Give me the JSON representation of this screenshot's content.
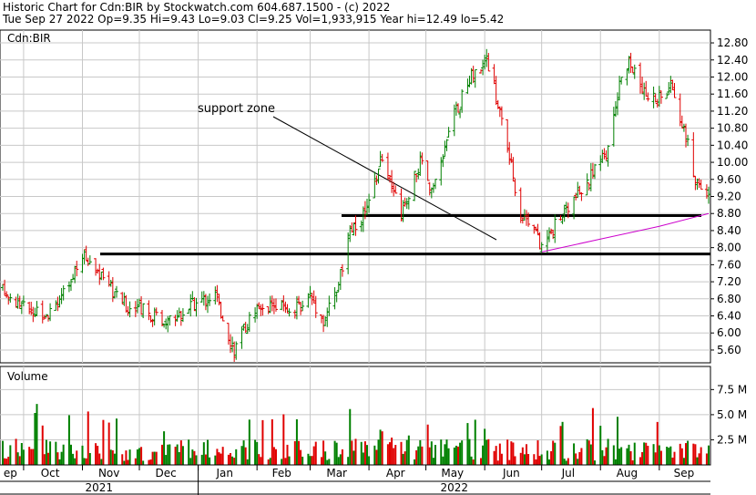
{
  "header": {
    "line1": "Historic Chart for Cdn:BIR by Stockwatch.com 604.687.1500 - (c) 2022",
    "line2": "Tue Sep 27 2022  Op=9.35  Hi=9.43  Lo=9.03  Cl=9.25  Vol=1,933,915  Year hi=12.49  lo=5.42"
  },
  "price_panel": {
    "symbol_label": "Cdn:BIR",
    "annotation": "support zone",
    "y_ticks": [
      "12.80",
      "12.40",
      "12.00",
      "11.60",
      "11.20",
      "10.80",
      "10.40",
      "10.00",
      "9.60",
      "9.20",
      "8.80",
      "8.40",
      "8.00",
      "7.60",
      "7.20",
      "6.80",
      "6.40",
      "6.00",
      "5.60"
    ]
  },
  "volume_panel": {
    "title": "Volume",
    "y_ticks": [
      "7.5 M",
      "5.0 M",
      "2.5 M"
    ]
  },
  "x_axis": {
    "months": [
      "ep",
      "Oct",
      "Nov",
      "Dec",
      "Jan",
      "Feb",
      "Mar",
      "Apr",
      "May",
      "Jun",
      "Jul",
      "Aug",
      "Sep"
    ],
    "years": [
      "2021",
      "2022"
    ]
  },
  "colors": {
    "up": "#008000",
    "down": "#e00000",
    "ma": "#cc00cc",
    "grid": "#c8c8c8",
    "support": "#000000"
  },
  "chart_data": {
    "type": "ohlc_bar_with_volume",
    "price_range": [
      5.3,
      13.1
    ],
    "volume_range_millions": [
      0,
      9.8
    ],
    "grid": true,
    "support_levels": [
      7.85,
      8.75
    ],
    "price_path": [
      {
        "date": "2021-09-20",
        "close": 7.0
      },
      {
        "date": "2021-10-01",
        "close": 6.6
      },
      {
        "date": "2021-10-15",
        "close": 6.5
      },
      {
        "date": "2021-10-25",
        "close": 7.1
      },
      {
        "date": "2021-11-01",
        "close": 7.8
      },
      {
        "date": "2021-11-05",
        "close": 7.7
      },
      {
        "date": "2021-11-15",
        "close": 7.1
      },
      {
        "date": "2021-11-25",
        "close": 6.6
      },
      {
        "date": "2021-12-05",
        "close": 6.5
      },
      {
        "date": "2021-12-15",
        "close": 6.3
      },
      {
        "date": "2021-12-31",
        "close": 6.7
      },
      {
        "date": "2022-01-10",
        "close": 6.9
      },
      {
        "date": "2022-01-20",
        "close": 5.6
      },
      {
        "date": "2022-01-31",
        "close": 6.6
      },
      {
        "date": "2022-02-10",
        "close": 6.7
      },
      {
        "date": "2022-02-20",
        "close": 6.5
      },
      {
        "date": "2022-03-01",
        "close": 6.9
      },
      {
        "date": "2022-03-08",
        "close": 6.3
      },
      {
        "date": "2022-03-15",
        "close": 7.0
      },
      {
        "date": "2022-03-22",
        "close": 8.3
      },
      {
        "date": "2022-03-31",
        "close": 8.9
      },
      {
        "date": "2022-04-08",
        "close": 10.2
      },
      {
        "date": "2022-04-12",
        "close": 9.6
      },
      {
        "date": "2022-04-18",
        "close": 8.8
      },
      {
        "date": "2022-04-28",
        "close": 10.0
      },
      {
        "date": "2022-05-05",
        "close": 9.3
      },
      {
        "date": "2022-05-15",
        "close": 11.0
      },
      {
        "date": "2022-05-25",
        "close": 12.0
      },
      {
        "date": "2022-06-02",
        "close": 12.45
      },
      {
        "date": "2022-06-10",
        "close": 11.0
      },
      {
        "date": "2022-06-20",
        "close": 8.8
      },
      {
        "date": "2022-06-27",
        "close": 8.6
      },
      {
        "date": "2022-06-30",
        "close": 8.0
      },
      {
        "date": "2022-07-05",
        "close": 8.3
      },
      {
        "date": "2022-07-15",
        "close": 9.0
      },
      {
        "date": "2022-07-25",
        "close": 9.5
      },
      {
        "date": "2022-08-05",
        "close": 10.3
      },
      {
        "date": "2022-08-12",
        "close": 12.0
      },
      {
        "date": "2022-08-16",
        "close": 12.3
      },
      {
        "date": "2022-08-24",
        "close": 11.6
      },
      {
        "date": "2022-09-01",
        "close": 11.5
      },
      {
        "date": "2022-09-08",
        "close": 11.8
      },
      {
        "date": "2022-09-15",
        "close": 10.6
      },
      {
        "date": "2022-09-20",
        "close": 9.6
      },
      {
        "date": "2022-09-27",
        "close": 9.25
      }
    ],
    "moving_average": [
      {
        "date": "2022-07-01",
        "value": 7.9
      },
      {
        "date": "2022-08-01",
        "value": 8.2
      },
      {
        "date": "2022-09-01",
        "value": 8.5
      },
      {
        "date": "2022-09-27",
        "value": 8.8
      }
    ],
    "last_bar": {
      "date": "2022-09-27",
      "open": 9.35,
      "high": 9.43,
      "low": 9.03,
      "close": 9.25,
      "volume": 1933915
    },
    "year_high": 12.49,
    "year_low": 5.42
  }
}
